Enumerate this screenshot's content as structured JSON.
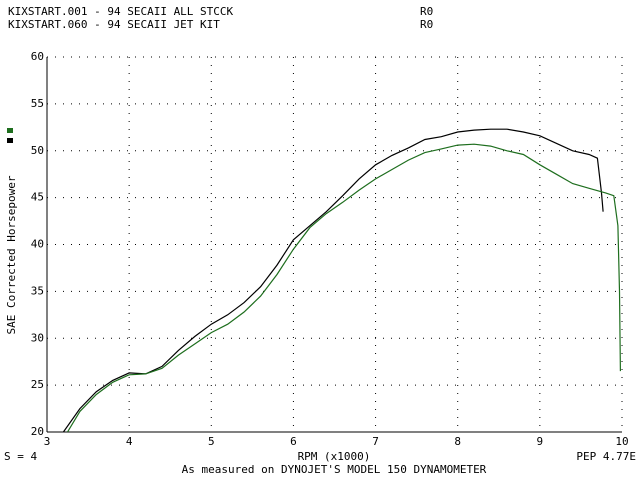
{
  "chart_data": {
    "type": "line",
    "header": [
      {
        "text": "KIXSTART.001 - 94 SECAII ALL STCCK",
        "run": "R0"
      },
      {
        "text": "KIXSTART.060 - 94 SECAII JET KIT",
        "run": "R0"
      }
    ],
    "x_label": "RPM (x1000)",
    "y_label": "SAE Corrected Horsepower",
    "smoothing": "S = 4",
    "footnote": "As measured on DYNOJET'S MODEL 150 DYNAMOMETER",
    "corner_note": "PEP 4.77E",
    "xlim": [
      3,
      10
    ],
    "ylim": [
      20,
      60
    ],
    "xticks": [
      3,
      4,
      5,
      6,
      7,
      8,
      9,
      10
    ],
    "yticks": [
      20,
      25,
      30,
      35,
      40,
      45,
      50,
      55,
      60
    ],
    "grid": true,
    "series": [
      {
        "name": "KIXSTART.001",
        "color": "#000000",
        "x": [
          3.2,
          3.4,
          3.6,
          3.8,
          4.0,
          4.2,
          4.4,
          4.6,
          4.8,
          5.0,
          5.2,
          5.4,
          5.6,
          5.8,
          6.0,
          6.2,
          6.4,
          6.6,
          6.8,
          7.0,
          7.2,
          7.4,
          7.6,
          7.8,
          8.0,
          8.2,
          8.4,
          8.6,
          8.8,
          9.0,
          9.2,
          9.4,
          9.6,
          9.7,
          9.75,
          9.77
        ],
        "values": [
          20,
          22.5,
          24.3,
          25.5,
          26.3,
          26.2,
          27,
          28.7,
          30.2,
          31.5,
          32.5,
          33.8,
          35.5,
          37.8,
          40.5,
          42,
          43.5,
          45.2,
          47,
          48.5,
          49.5,
          50.3,
          51.2,
          51.5,
          52,
          52.2,
          52.3,
          52.3,
          52,
          51.6,
          50.8,
          50,
          49.6,
          49.2,
          45.5,
          43.5
        ]
      },
      {
        "name": "KIXSTART.060",
        "color": "#1e6e1e",
        "x": [
          3.25,
          3.4,
          3.6,
          3.8,
          4.0,
          4.2,
          4.4,
          4.6,
          4.8,
          5.0,
          5.2,
          5.4,
          5.6,
          5.8,
          6.0,
          6.2,
          6.4,
          6.6,
          6.8,
          7.0,
          7.2,
          7.4,
          7.6,
          7.8,
          8.0,
          8.2,
          8.4,
          8.6,
          8.8,
          9.0,
          9.2,
          9.4,
          9.6,
          9.8,
          9.9,
          9.95,
          9.97,
          9.98
        ],
        "values": [
          20,
          22.2,
          24,
          25.3,
          26.1,
          26.2,
          26.8,
          28.2,
          29.4,
          30.6,
          31.5,
          32.8,
          34.5,
          36.8,
          39.5,
          41.8,
          43.3,
          44.5,
          45.8,
          47,
          48,
          49,
          49.8,
          50.2,
          50.6,
          50.7,
          50.5,
          50,
          49.6,
          48.5,
          47.5,
          46.5,
          46,
          45.5,
          45.2,
          42,
          35,
          26.5
        ]
      }
    ]
  }
}
